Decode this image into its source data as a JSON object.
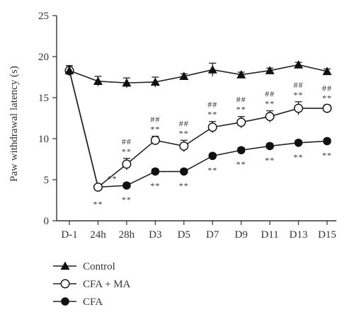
{
  "chart_data": {
    "type": "line",
    "xlabel": "",
    "ylabel": "Paw withdrawal latency (s)",
    "ylim": [
      0,
      25
    ],
    "yticks": [
      "0",
      "5",
      "10",
      "15",
      "20",
      "25"
    ],
    "categories": [
      "D-1",
      "24h",
      "28h",
      "D3",
      "D5",
      "D7",
      "D9",
      "D11",
      "D13",
      "D15"
    ],
    "series": [
      {
        "name": "Control",
        "marker": "filled-triangle",
        "values": [
          18.3,
          17.0,
          16.8,
          16.9,
          17.6,
          18.4,
          17.8,
          18.3,
          19.0,
          18.2
        ],
        "errors": [
          0.6,
          0.6,
          0.6,
          0.6,
          0.3,
          0.8,
          0.3,
          0.3,
          0.3,
          0.3
        ]
      },
      {
        "name": "CFA + MA",
        "marker": "open-circle",
        "values": [
          18.3,
          4.1,
          6.9,
          9.8,
          9.1,
          11.4,
          12.0,
          12.7,
          13.7,
          13.7
        ],
        "errors": [
          0.6,
          0.3,
          0.7,
          0.5,
          0.7,
          0.7,
          0.7,
          0.7,
          0.8,
          0.4
        ]
      },
      {
        "name": "CFA",
        "marker": "filled-circle",
        "values": [
          18.3,
          4.1,
          4.3,
          6.0,
          6.0,
          7.9,
          8.6,
          9.1,
          9.5,
          9.7
        ],
        "errors": [
          0.6,
          0.3,
          0.3,
          0.3,
          0.3,
          0.3,
          0.3,
          0.3,
          0.3,
          0.3
        ]
      }
    ],
    "annotations": {
      "cfa_ma_hash": [
        "",
        "",
        "##",
        "##",
        "##",
        "##",
        "##",
        "##",
        "##",
        "##"
      ],
      "cfa_ma_star": [
        "",
        "**",
        "**",
        "**",
        "**",
        "**",
        "**",
        "**",
        "**",
        "**"
      ],
      "cfa_star": [
        "",
        "**",
        "**",
        "**",
        "**",
        "**",
        "**",
        "**",
        "**",
        "**"
      ]
    },
    "legend": {
      "placement": "bottom-left",
      "entries": [
        "Control",
        "CFA + MA",
        "CFA"
      ]
    },
    "grid": false
  }
}
